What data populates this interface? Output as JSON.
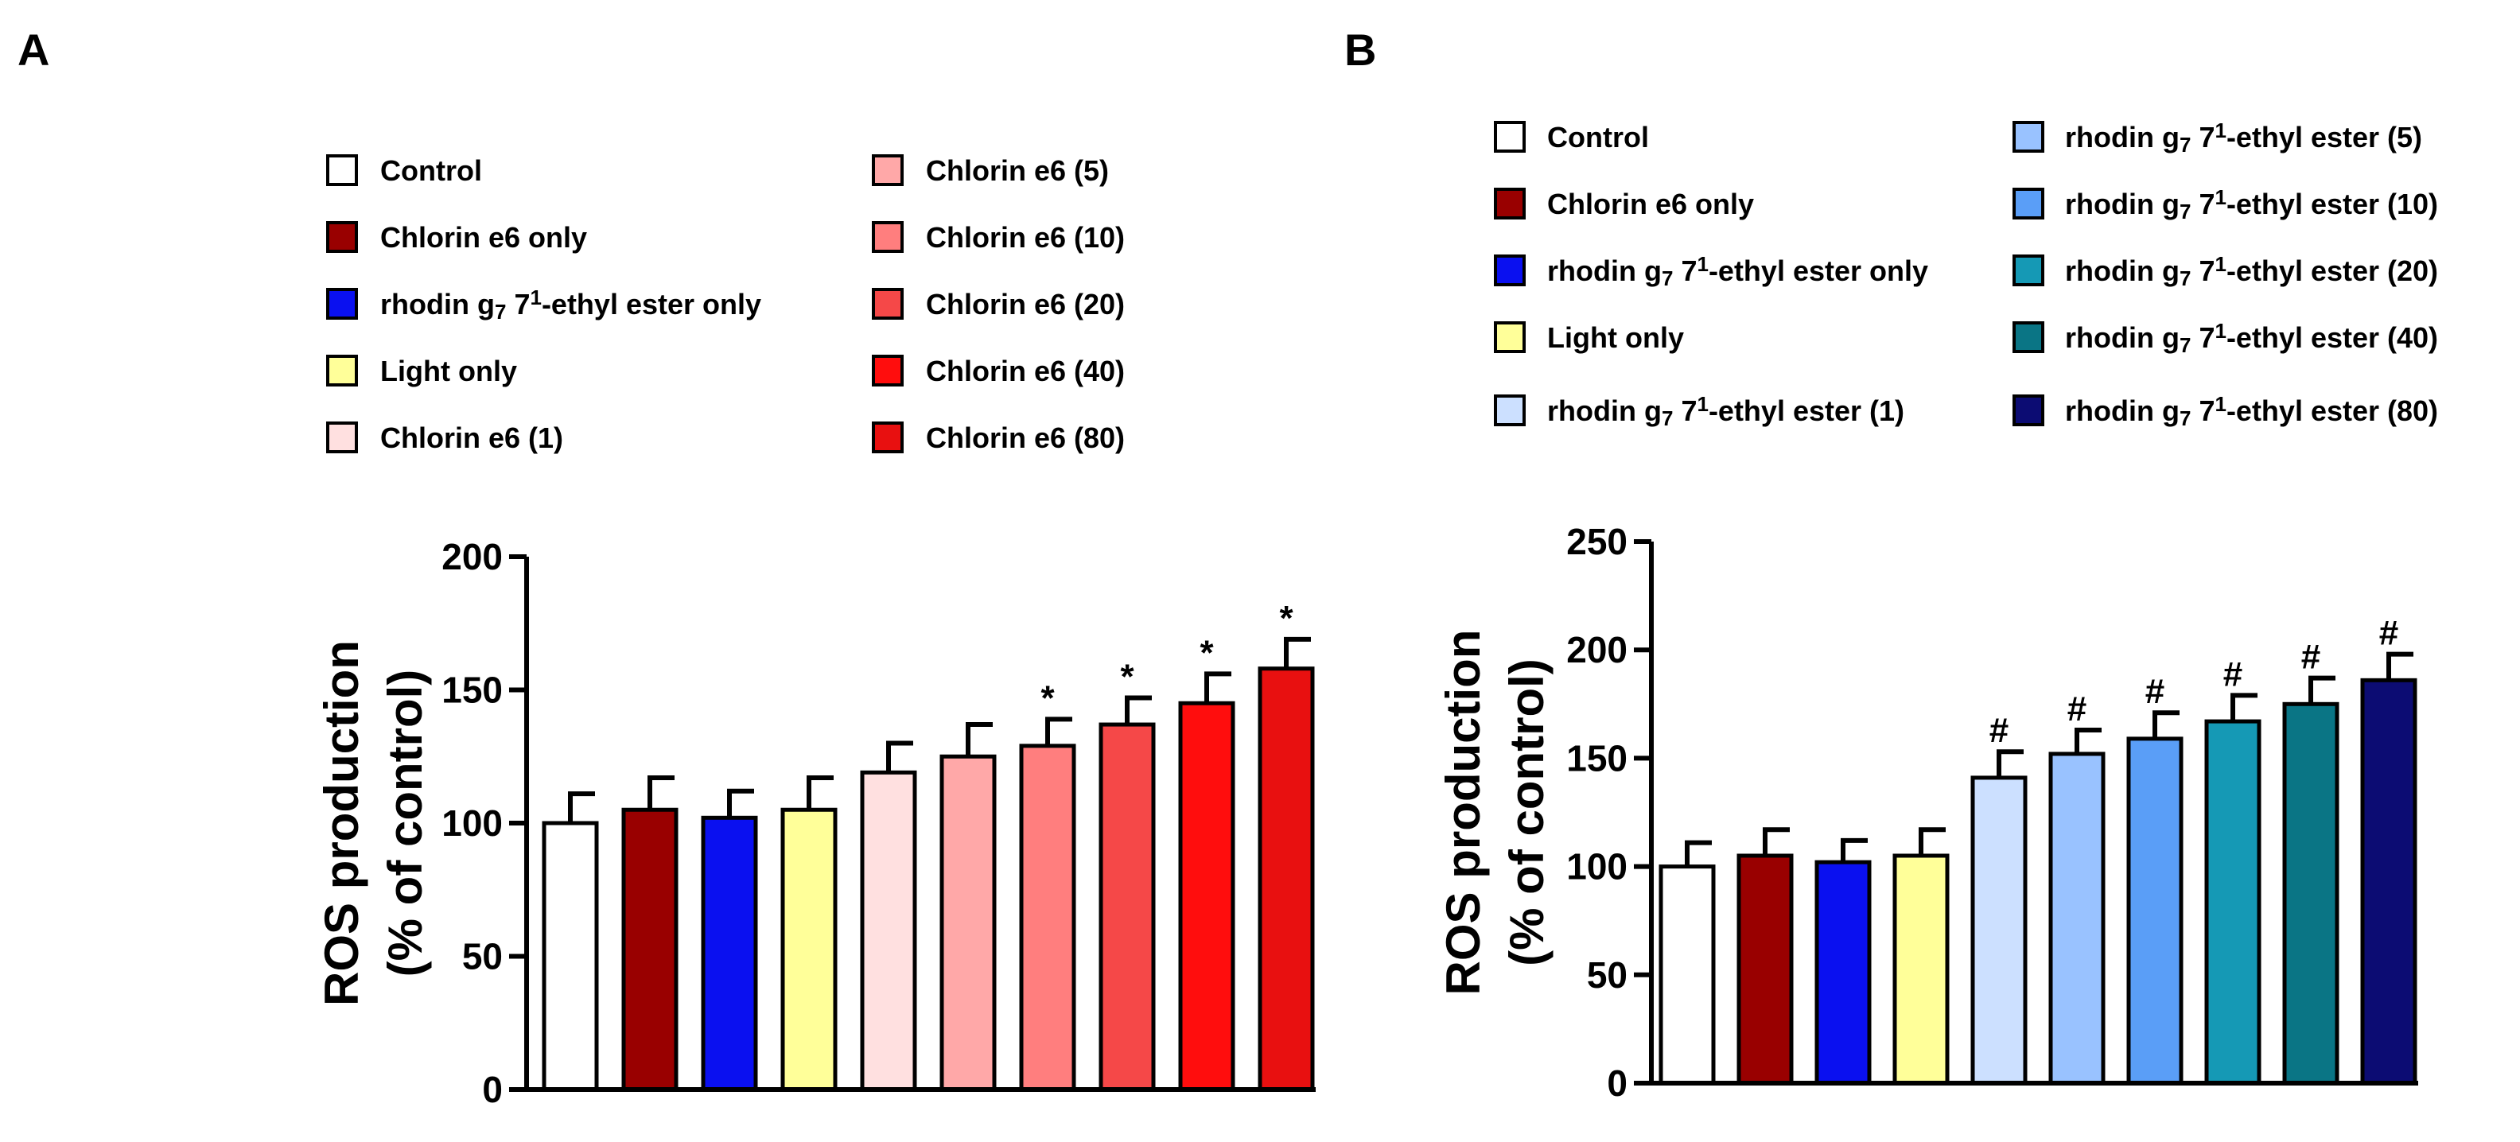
{
  "chart_data": [
    {
      "panel": "A",
      "type": "bar",
      "xlabel": "",
      "ylabel": [
        "ROS production",
        "(% of control)"
      ],
      "ylim": [
        0,
        200
      ],
      "yticks": [
        0,
        50,
        100,
        150,
        200
      ],
      "categories": [
        "Control",
        "Chlorin e6 only",
        "rhodin g7 7¹-ethyl ester only",
        "Light only",
        "Chlorin e6 (1)",
        "Chlorin e6 (5)",
        "Chlorin e6 (10)",
        "Chlorin e6 (20)",
        "Chlorin e6 (40)",
        "Chlorin e6 (80)"
      ],
      "legend": [
        {
          "pre": "Control",
          "sub": "",
          "sup": "",
          "post": ""
        },
        {
          "pre": "Chlorin e6 only",
          "sub": "",
          "sup": "",
          "post": ""
        },
        {
          "pre": "rhodin g",
          "sub": "7",
          "sup": "1",
          "post": "-ethyl ester only"
        },
        {
          "pre": "Light only",
          "sub": "",
          "sup": "",
          "post": ""
        },
        {
          "pre": "Chlorin e6 (1)",
          "sub": "",
          "sup": "",
          "post": ""
        },
        {
          "pre": "Chlorin e6 (5)",
          "sub": "",
          "sup": "",
          "post": ""
        },
        {
          "pre": "Chlorin e6 (10)",
          "sub": "",
          "sup": "",
          "post": ""
        },
        {
          "pre": "Chlorin e6 (20)",
          "sub": "",
          "sup": "",
          "post": ""
        },
        {
          "pre": "Chlorin e6 (40)",
          "sub": "",
          "sup": "",
          "post": ""
        },
        {
          "pre": "Chlorin e6 (80)",
          "sub": "",
          "sup": "",
          "post": ""
        }
      ],
      "values": [
        100,
        105,
        102,
        105,
        119,
        125,
        129,
        137,
        145,
        158
      ],
      "errors": [
        11,
        12,
        10,
        12,
        11,
        12,
        10,
        10,
        11,
        11
      ],
      "colors": [
        "#ffffff",
        "#990000",
        "#0a10f0",
        "#ffff99",
        "#ffe0e0",
        "#ffa8a8",
        "#ff7e7e",
        "#f54848",
        "#ff0d0d",
        "#e81010"
      ],
      "annotations": [
        "",
        "",
        "",
        "",
        "",
        "",
        "*",
        "*",
        "*",
        "*"
      ]
    },
    {
      "panel": "B",
      "type": "bar",
      "xlabel": "",
      "ylabel": [
        "ROS production",
        "(% of control)"
      ],
      "ylim": [
        0,
        250
      ],
      "yticks": [
        0,
        50,
        100,
        150,
        200,
        250
      ],
      "categories": [
        "Control",
        "Chlorin e6 only",
        "rhodin g7 7¹-ethyl ester only",
        "Light only",
        "rhodin g7 7¹-ethyl ester (1)",
        "rhodin g7 7¹-ethyl ester (5)",
        "rhodin g7 7¹-ethyl ester (10)",
        "rhodin g7 7¹-ethyl ester (20)",
        "rhodin g7 7¹-ethyl ester (40)",
        "rhodin g7 7¹-ethyl ester (80)"
      ],
      "legend": [
        {
          "pre": "Control",
          "sub": "",
          "sup": "",
          "post": ""
        },
        {
          "pre": "Chlorin e6 only",
          "sub": "",
          "sup": "",
          "post": ""
        },
        {
          "pre": "rhodin g",
          "sub": "7",
          "sup": "1",
          "post": "-ethyl ester only"
        },
        {
          "pre": "Light only",
          "sub": "",
          "sup": "",
          "post": ""
        },
        {
          "pre": "rhodin g",
          "sub": "7",
          "sup": "1",
          "post": "-ethyl ester (1)"
        },
        {
          "pre": "rhodin g",
          "sub": "7",
          "sup": "1",
          "post": "-ethyl ester (5)"
        },
        {
          "pre": "rhodin g",
          "sub": "7",
          "sup": "1",
          "post": "-ethyl ester (10)"
        },
        {
          "pre": "rhodin g",
          "sub": "7",
          "sup": "1",
          "post": "-ethyl ester (20)"
        },
        {
          "pre": "rhodin g",
          "sub": "7",
          "sup": "1",
          "post": "-ethyl ester (40)"
        },
        {
          "pre": "rhodin g",
          "sub": "7",
          "sup": "1",
          "post": "-ethyl ester (80)"
        }
      ],
      "values": [
        100,
        105,
        102,
        105,
        141,
        152,
        159,
        167,
        175,
        186
      ],
      "errors": [
        11,
        12,
        10,
        12,
        12,
        11,
        12,
        12,
        12,
        12
      ],
      "colors": [
        "#ffffff",
        "#990000",
        "#0a10f0",
        "#ffff99",
        "#cce0ff",
        "#99c2ff",
        "#5a9ef7",
        "#1599b5",
        "#0a7585",
        "#0c0c73"
      ],
      "annotations": [
        "",
        "",
        "",
        "",
        "#",
        "#",
        "#",
        "#",
        "#",
        "#"
      ]
    }
  ]
}
